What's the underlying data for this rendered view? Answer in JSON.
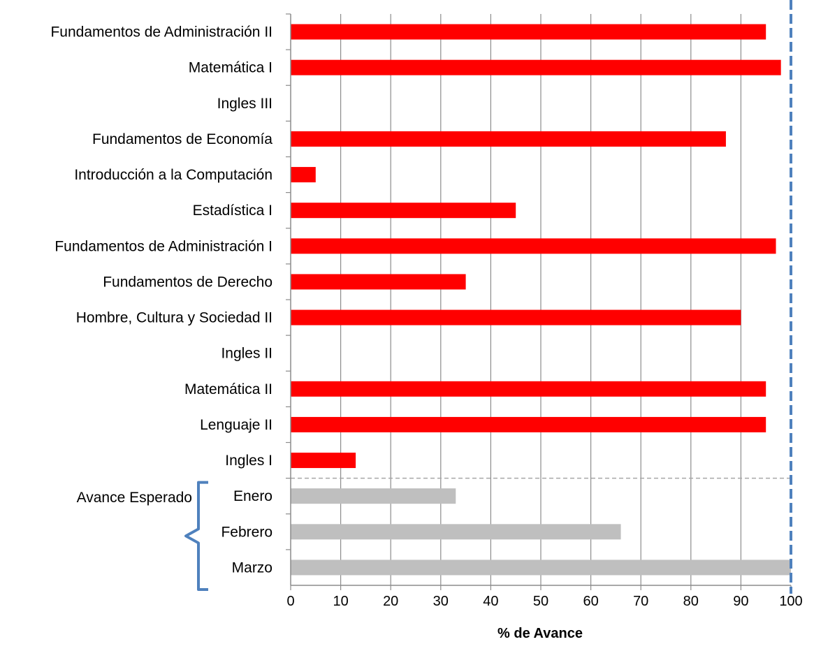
{
  "chart_data": {
    "type": "bar",
    "orientation": "horizontal",
    "categories": [
      "Fundamentos de Administración II",
      "Matemática I",
      "Ingles III",
      "Fundamentos de Economía",
      "Introducción a la Computación",
      "Estadística I",
      "Fundamentos de Administración I",
      "Fundamentos de Derecho",
      "Hombre, Cultura y Sociedad II",
      "Ingles II",
      "Matemática II",
      "Lenguaje II",
      "Ingles I",
      "Enero",
      "Febrero",
      "Marzo"
    ],
    "values": [
      95,
      98,
      0,
      87,
      5,
      45,
      97,
      35,
      90,
      0,
      95,
      95,
      13,
      33,
      66,
      100
    ],
    "bar_colors": [
      "#ff0000",
      "#ff0000",
      "#ff0000",
      "#ff0000",
      "#ff0000",
      "#ff0000",
      "#ff0000",
      "#ff0000",
      "#ff0000",
      "#ff0000",
      "#ff0000",
      "#ff0000",
      "#ff0000",
      "#bfbfbf",
      "#bfbfbf",
      "#bfbfbf"
    ],
    "group_label": "Avance Esperado",
    "xlabel": "% de Avance",
    "ylabel": "",
    "title": "",
    "xlim": [
      0,
      100
    ],
    "xticks": [
      0,
      10,
      20,
      30,
      40,
      50,
      60,
      70,
      80,
      90,
      100
    ],
    "grid": "vertical",
    "reference_line_value": 100,
    "reference_line_color": "#4f81bd",
    "bracket_color": "#4f81bd",
    "divider_color": "#a6a6a6",
    "grid_color": "#8c8c8c",
    "axis_color": "#8c8c8c"
  }
}
